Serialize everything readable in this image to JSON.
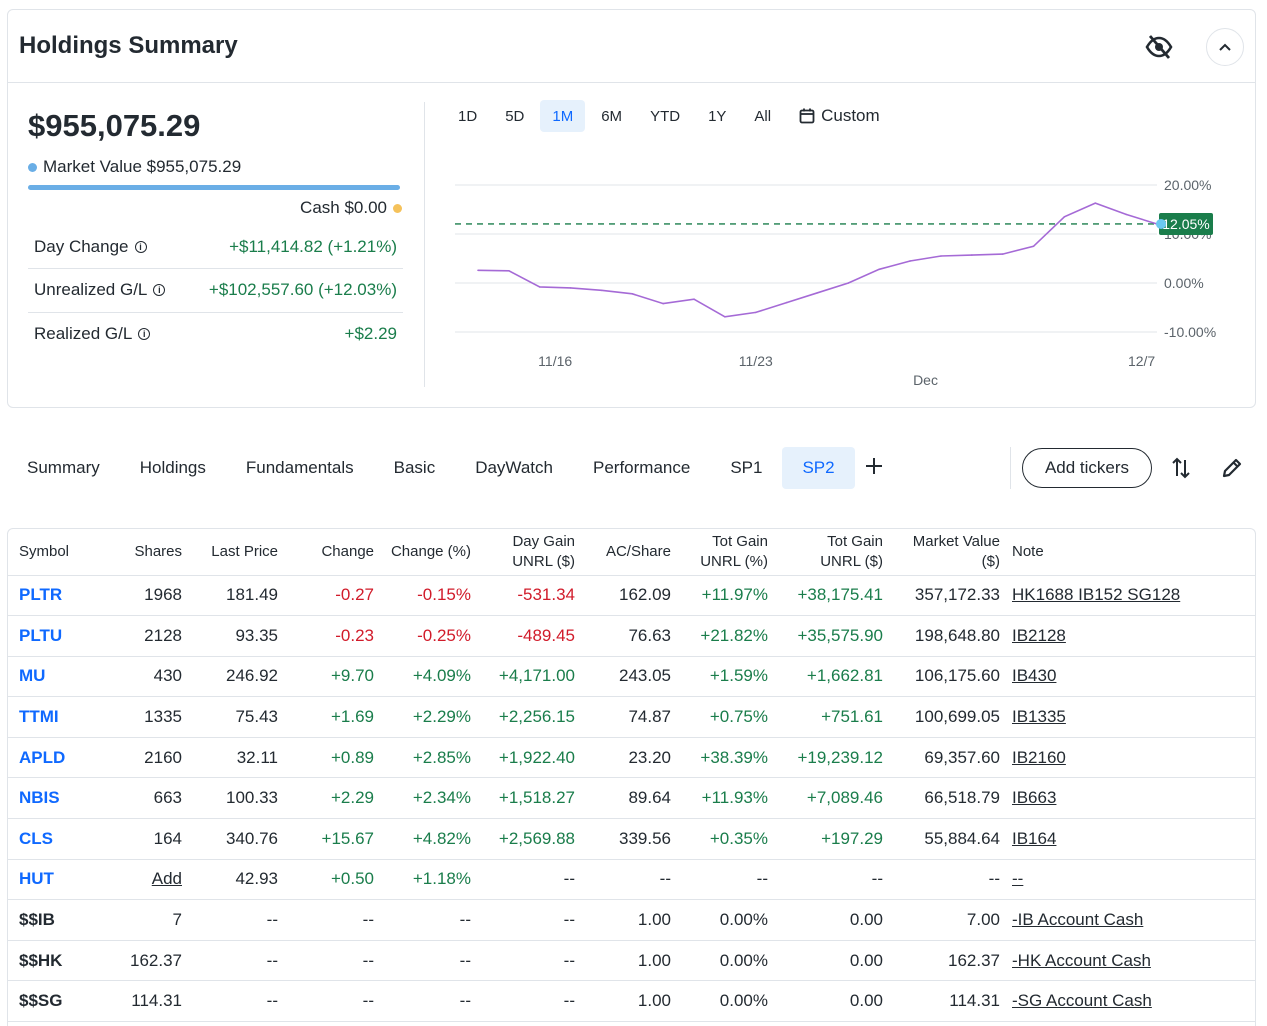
{
  "summary": {
    "title": "Holdings Summary",
    "total_value": "$955,075.29",
    "market_value_label": "Market Value $955,075.29",
    "cash_label": "Cash $0.00",
    "metrics": [
      {
        "label": "Day Change",
        "value": "+$11,414.82 (+1.21%)"
      },
      {
        "label": "Unrealized G/L",
        "value": "+$102,557.60 (+12.03%)"
      },
      {
        "label": "Realized G/L",
        "value": "+$2.29"
      }
    ],
    "colors": {
      "market_value": "#6aaee6",
      "cash": "#f5c25b",
      "positive": "#1a7d4b",
      "negative": "#d11b2a",
      "accent": "#0f69ff"
    }
  },
  "ranges": [
    "1D",
    "5D",
    "1M",
    "6M",
    "YTD",
    "1Y",
    "All"
  ],
  "active_range": "1M",
  "custom_label": "Custom",
  "chart_data": {
    "type": "line",
    "x": [
      "11/13",
      "11/14",
      "11/15",
      "11/17",
      "11/18",
      "11/19",
      "11/20",
      "11/21",
      "11/22",
      "11/24",
      "11/25",
      "11/26",
      "11/27",
      "11/28",
      "11/29",
      "12/1",
      "12/2",
      "12/3",
      "12/4",
      "12/5",
      "12/6",
      "12/7",
      "12/8"
    ],
    "series": [
      {
        "values": [
          2.6,
          2.5,
          -0.8,
          -1.0,
          -1.5,
          -2.2,
          -4.2,
          -3.3,
          -6.9,
          -6.0,
          -4.0,
          -2.0,
          0.0,
          2.8,
          4.5,
          5.5,
          5.7,
          5.9,
          7.5,
          13.5,
          16.3,
          14.0,
          12.05
        ]
      }
    ],
    "yticks": [
      "20.00%",
      "10.00%",
      "0.00%",
      "-10.00%"
    ],
    "ylim": [
      -10,
      20
    ],
    "xticks": [
      "11/16",
      "11/23",
      "Dec",
      "12/7"
    ],
    "reference_value": 12.05,
    "current_label": "12.05%",
    "line_color": "#a56ad6",
    "reference_color": "#1a7d4b"
  },
  "tabs": [
    "Summary",
    "Holdings",
    "Fundamentals",
    "Basic",
    "DayWatch",
    "Performance",
    "SP1",
    "SP2"
  ],
  "active_tab": "SP2",
  "add_tickers_label": "Add tickers",
  "table": {
    "headers": {
      "symbol": "Symbol",
      "shares": "Shares",
      "last_price": "Last Price",
      "change": "Change",
      "change_pct": "Change (%)",
      "day_gain_1": "Day Gain",
      "day_gain_2": "UNRL ($)",
      "ac_share": "AC/Share",
      "tot_gain_pct_1": "Tot Gain",
      "tot_gain_pct_2": "UNRL (%)",
      "tot_gain_usd_1": "Tot Gain",
      "tot_gain_usd_2": "UNRL ($)",
      "market_value_1": "Market Value",
      "market_value_2": "($)",
      "note": "Note"
    },
    "rows": [
      {
        "symbol": "PLTR",
        "shares": "1968",
        "last_price": "181.49",
        "change": "-0.27",
        "change_pct": "-0.15%",
        "day_gain": "-531.34",
        "ac_share": "162.09",
        "tot_gain_pct": "+11.97%",
        "tot_gain_usd": "+38,175.41",
        "market_value": "357,172.33",
        "note": "HK1688 IB152 SG128"
      },
      {
        "symbol": "PLTU",
        "shares": "2128",
        "last_price": "93.35",
        "change": "-0.23",
        "change_pct": "-0.25%",
        "day_gain": "-489.45",
        "ac_share": "76.63",
        "tot_gain_pct": "+21.82%",
        "tot_gain_usd": "+35,575.90",
        "market_value": "198,648.80",
        "note": "IB2128"
      },
      {
        "symbol": "MU",
        "shares": "430",
        "last_price": "246.92",
        "change": "+9.70",
        "change_pct": "+4.09%",
        "day_gain": "+4,171.00",
        "ac_share": "243.05",
        "tot_gain_pct": "+1.59%",
        "tot_gain_usd": "+1,662.81",
        "market_value": "106,175.60",
        "note": "IB430"
      },
      {
        "symbol": "TTMI",
        "shares": "1335",
        "last_price": "75.43",
        "change": "+1.69",
        "change_pct": "+2.29%",
        "day_gain": "+2,256.15",
        "ac_share": "74.87",
        "tot_gain_pct": "+0.75%",
        "tot_gain_usd": "+751.61",
        "market_value": "100,699.05",
        "note": "IB1335"
      },
      {
        "symbol": "APLD",
        "shares": "2160",
        "last_price": "32.11",
        "change": "+0.89",
        "change_pct": "+2.85%",
        "day_gain": "+1,922.40",
        "ac_share": "23.20",
        "tot_gain_pct": "+38.39%",
        "tot_gain_usd": "+19,239.12",
        "market_value": "69,357.60",
        "note": "IB2160"
      },
      {
        "symbol": "NBIS",
        "shares": "663",
        "last_price": "100.33",
        "change": "+2.29",
        "change_pct": "+2.34%",
        "day_gain": "+1,518.27",
        "ac_share": "89.64",
        "tot_gain_pct": "+11.93%",
        "tot_gain_usd": "+7,089.46",
        "market_value": "66,518.79",
        "note": "IB663"
      },
      {
        "symbol": "CLS",
        "shares": "164",
        "last_price": "340.76",
        "change": "+15.67",
        "change_pct": "+4.82%",
        "day_gain": "+2,569.88",
        "ac_share": "339.56",
        "tot_gain_pct": "+0.35%",
        "tot_gain_usd": "+197.29",
        "market_value": "55,884.64",
        "note": "IB164"
      },
      {
        "symbol": "HUT",
        "shares": "Add",
        "last_price": "42.93",
        "change": "+0.50",
        "change_pct": "+1.18%",
        "day_gain": "--",
        "ac_share": "--",
        "tot_gain_pct": "--",
        "tot_gain_usd": "--",
        "market_value": "--",
        "note": "--"
      },
      {
        "symbol": "$$IB",
        "shares": "7",
        "last_price": "--",
        "change": "--",
        "change_pct": "--",
        "day_gain": "--",
        "ac_share": "1.00",
        "tot_gain_pct": "0.00%",
        "tot_gain_usd": "0.00",
        "market_value": "7.00",
        "note": "-IB Account Cash"
      },
      {
        "symbol": "$$HK",
        "shares": "162.37",
        "last_price": "--",
        "change": "--",
        "change_pct": "--",
        "day_gain": "--",
        "ac_share": "1.00",
        "tot_gain_pct": "0.00%",
        "tot_gain_usd": "0.00",
        "market_value": "162.37",
        "note": "-HK Account Cash"
      },
      {
        "symbol": "$$SG",
        "shares": "114.31",
        "last_price": "--",
        "change": "--",
        "change_pct": "--",
        "day_gain": "--",
        "ac_share": "1.00",
        "tot_gain_pct": "0.00%",
        "tot_gain_usd": "0.00",
        "market_value": "114.31",
        "note": "-SG Account Cash"
      }
    ]
  }
}
